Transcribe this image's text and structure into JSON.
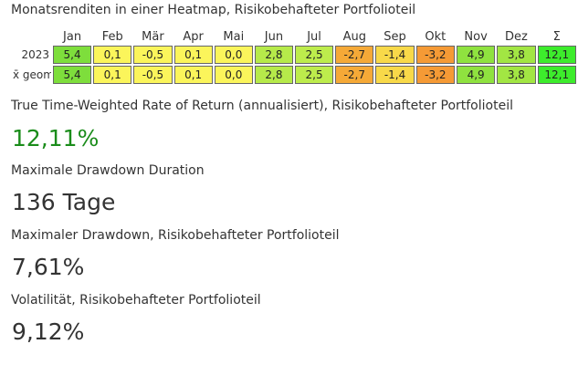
{
  "heatmap": {
    "title": "Monatsrenditen in einer Heatmap, Risikobehafteter Portfolioteil",
    "columns": [
      "Jan",
      "Feb",
      "Mär",
      "Apr",
      "Mai",
      "Jun",
      "Jul",
      "Aug",
      "Sep",
      "Okt",
      "Nov",
      "Dez",
      "Σ"
    ],
    "rows": [
      {
        "label": "2023",
        "values": [
          "5,4",
          "0,1",
          "-0,5",
          "0,1",
          "0,0",
          "2,8",
          "2,5",
          "-2,7",
          "-1,4",
          "-3,2",
          "4,9",
          "3,8",
          "12,1"
        ],
        "colors": [
          "#7ede3c",
          "#fbf55b",
          "#fbf55b",
          "#fbf55b",
          "#fbf55b",
          "#b6ea4a",
          "#bdec4c",
          "#f5a937",
          "#f8d949",
          "#f59a35",
          "#8fe23f",
          "#a2e643",
          "#3dec2c"
        ]
      },
      {
        "label": "x̄ geom",
        "values": [
          "5,4",
          "0,1",
          "-0,5",
          "0,1",
          "0,0",
          "2,8",
          "2,5",
          "-2,7",
          "-1,4",
          "-3,2",
          "4,9",
          "3,8",
          "12,1"
        ],
        "colors": [
          "#7ede3c",
          "#fbf55b",
          "#fbf55b",
          "#fbf55b",
          "#fbf55b",
          "#b6ea4a",
          "#bdec4c",
          "#f5a937",
          "#f8d949",
          "#f59a35",
          "#8fe23f",
          "#a2e643",
          "#3dec2c"
        ]
      }
    ]
  },
  "metrics": [
    {
      "label": "True Time-Weighted Rate of Return (annualisiert), Risikobehafteter Portfolioteil",
      "value": "12,11%",
      "positive": true
    },
    {
      "label": "Maximale Drawdown Duration",
      "value": "136 Tage",
      "positive": false
    },
    {
      "label": "Maximaler Drawdown, Risikobehafteter Portfolioteil",
      "value": "7,61%",
      "positive": false
    },
    {
      "label": "Volatilität, Risikobehafteter Portfolioteil",
      "value": "9,12%",
      "positive": false
    }
  ],
  "colors": {
    "positive_value": "#1a8c1a",
    "text": "#333333"
  }
}
